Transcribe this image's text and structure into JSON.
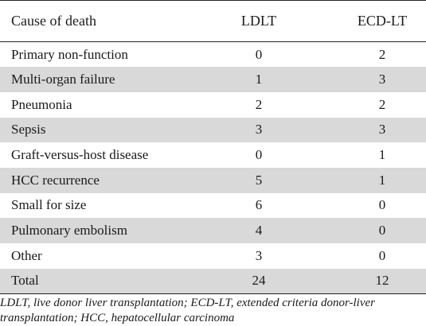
{
  "table": {
    "headers": [
      "Cause of death",
      "LDLT",
      "ECD-LT"
    ],
    "rows": [
      {
        "cause": "Primary non-function",
        "ldlt": "0",
        "ecdlt": "2"
      },
      {
        "cause": "Multi-organ failure",
        "ldlt": "1",
        "ecdlt": "3"
      },
      {
        "cause": "Pneumonia",
        "ldlt": "2",
        "ecdlt": "2"
      },
      {
        "cause": "Sepsis",
        "ldlt": "3",
        "ecdlt": "3"
      },
      {
        "cause": "Graft-versus-host disease",
        "ldlt": "0",
        "ecdlt": "1"
      },
      {
        "cause": "HCC recurrence",
        "ldlt": "5",
        "ecdlt": "1"
      },
      {
        "cause": "Small for size",
        "ldlt": "6",
        "ecdlt": "0"
      },
      {
        "cause": "Pulmonary embolism",
        "ldlt": "4",
        "ecdlt": "0"
      },
      {
        "cause": "Other",
        "ldlt": "3",
        "ecdlt": "0"
      },
      {
        "cause": "Total",
        "ldlt": "24",
        "ecdlt": "12"
      }
    ]
  },
  "footnote": {
    "line1": "LDLT, live donor liver transplantation; ECD-LT, extended criteria donor-liver",
    "line2": "transplantation; HCC, hepatocellular carcinoma"
  },
  "colors": {
    "stripe": "#d9d9d9",
    "rule": "#222222",
    "text": "#1a1a1a"
  }
}
